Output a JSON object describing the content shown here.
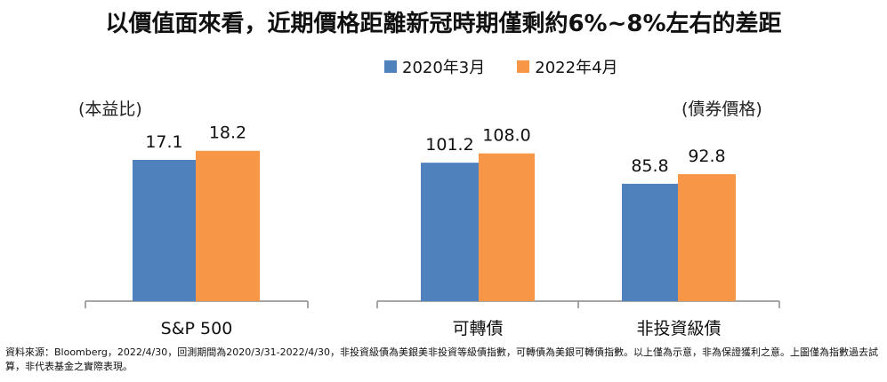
{
  "title": "以價值面來看，近期價格距離新冠時期僅剩約6%~8%左右的差距",
  "chart_data": [
    {
      "type": "bar",
      "ylabel": "(本益比)",
      "categories": [
        "S&P 500"
      ],
      "ylim": [
        0,
        18.9
      ],
      "series": [
        {
          "name": "2020年3月",
          "values": [
            17.1
          ],
          "color": "#4F81BD"
        },
        {
          "name": "2022年4月",
          "values": [
            18.2
          ],
          "color": "#F79646"
        }
      ],
      "labels": [
        [
          "17.1"
        ],
        [
          "18.2"
        ]
      ]
    },
    {
      "type": "bar",
      "ylabel": "(債券價格)",
      "categories": [
        "可轉債",
        "非投資級債"
      ],
      "ylim": [
        0,
        115
      ],
      "series": [
        {
          "name": "2020年3月",
          "values": [
            101.2,
            85.8
          ],
          "color": "#4F81BD"
        },
        {
          "name": "2022年4月",
          "values": [
            108.0,
            92.8
          ],
          "color": "#F79646"
        }
      ],
      "labels": [
        [
          "101.2",
          "85.8"
        ],
        [
          "108.0",
          "92.8"
        ]
      ]
    }
  ],
  "legend": [
    {
      "label": "2020年3月",
      "color": "#4F81BD"
    },
    {
      "label": "2022年4月",
      "color": "#F79646"
    }
  ],
  "footnote": "資料來源：Bloomberg，2022/4/30，回測期間為2020/3/31-2022/4/30，非投資級債為美銀美非投資等級債指數，可轉債為美銀可轉債指數。以上僅為示意，非為保證獲利之意。上圖僅為指數過去試算，非代表基金之實際表現。"
}
